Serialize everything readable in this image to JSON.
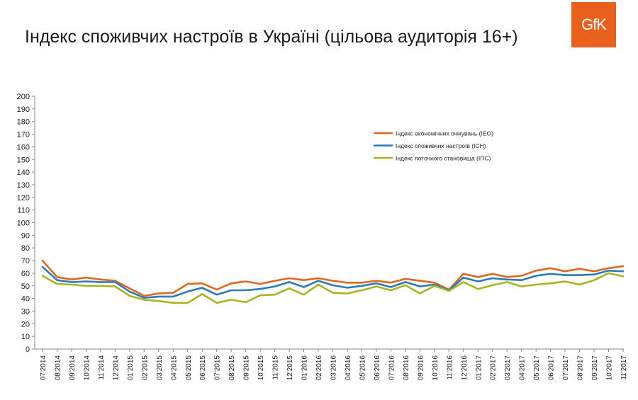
{
  "header": {
    "title": "Індекс споживчих настроїв в Україні (цільова аудиторія 16+)",
    "logo_text": "GfK",
    "logo_color": "#e8601c"
  },
  "chart_data": {
    "type": "line",
    "categories": [
      "07'2014",
      "08'2014",
      "09'2014",
      "10'2014",
      "11'2014",
      "12'2014",
      "01'2015",
      "02'2015",
      "03'2015",
      "04'2015",
      "05'2015",
      "06'2015",
      "07'2015",
      "08'2015",
      "09'2015",
      "10'2015",
      "11'2015",
      "12'2015",
      "01'2016",
      "02'2016",
      "03'2016",
      "04'2016",
      "05'2016",
      "06'2016",
      "07'2016",
      "08'2016",
      "09'2016",
      "10'2016",
      "11'2016",
      "12'2016",
      "01'2017",
      "02'2017",
      "03'2017",
      "04'2017",
      "05'2017",
      "06'2017",
      "07'2017",
      "08'2017",
      "09'2017",
      "10'2017",
      "11'2017"
    ],
    "y_ticks": [
      "0",
      "10",
      "20",
      "30",
      "40",
      "50",
      "60",
      "70",
      "80",
      "90",
      "100",
      "110",
      "120",
      "130",
      "140",
      "150",
      "160",
      "170",
      "180",
      "190",
      "200"
    ],
    "ylim": [
      0,
      200
    ],
    "legend_position": "top-center",
    "series": [
      {
        "name": "Індекс економічних очікувань (ІЕО)",
        "color": "#e2661d",
        "values": [
          70,
          57,
          55,
          56.5,
          55,
          54,
          48,
          42,
          44,
          44.5,
          51.5,
          52,
          47,
          52,
          53.5,
          51.5,
          54,
          56,
          54.5,
          56,
          54,
          52.5,
          52.5,
          54,
          52.5,
          55.5,
          54,
          52.5,
          47,
          59.5,
          57,
          59.5,
          57,
          58,
          62,
          64,
          61.5,
          63.5,
          61.5,
          64,
          65.5
        ]
      },
      {
        "name": "Індекс споживчих настроїв (ІСН)",
        "color": "#2a7cb8",
        "values": [
          65,
          54.5,
          53,
          53.5,
          53,
          53,
          45.5,
          40.5,
          41.5,
          41.5,
          45.5,
          48.5,
          43,
          46.5,
          46.5,
          47.5,
          49.5,
          53,
          49,
          54,
          50.5,
          48.5,
          50,
          52,
          49,
          53,
          49.5,
          51,
          46.5,
          56.5,
          53.5,
          56,
          55,
          54.5,
          58,
          59.5,
          58.5,
          58.5,
          59,
          62,
          61.5
        ]
      },
      {
        "name": "Індекс поточного становища (ІПС)",
        "color": "#a8b520",
        "values": [
          58,
          51.5,
          51,
          50,
          50,
          49.5,
          42,
          39,
          38,
          36.5,
          36.5,
          43.5,
          36.5,
          39,
          37,
          42.5,
          43,
          48,
          43,
          51,
          44.5,
          44,
          46.5,
          49.5,
          46.5,
          50.5,
          44,
          50,
          46,
          53,
          47.5,
          50.5,
          53,
          49.5,
          51,
          52,
          53.5,
          51,
          54.5,
          60,
          57.5
        ]
      }
    ]
  }
}
